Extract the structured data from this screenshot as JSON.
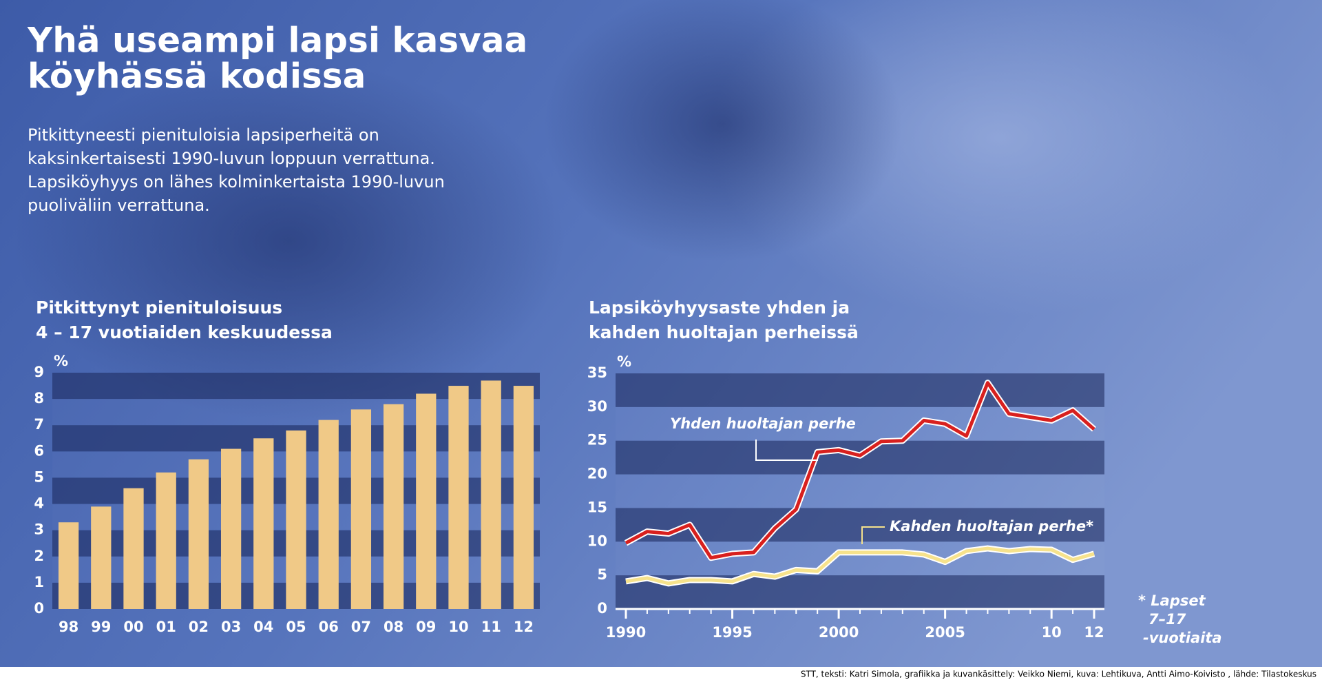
{
  "header": {
    "title": [
      "Yhä useampi lapsi kasvaa",
      "köyhässä kodissa"
    ],
    "subtitle": [
      "Pitkittyneesti pienituloisia lapsiperheitä on",
      "kaksinkertaisesti 1990-luvun loppuun verrattuna.",
      "Lapsiköyhyys on  lähes kolminkertaista 1990-luvun",
      "puoliväliin verrattuna."
    ]
  },
  "chart_data": [
    {
      "type": "bar",
      "title": [
        "Pitkittynyt pienituloisuus",
        "4 – 17 vuotiaiden keskuudessa"
      ],
      "y_label": "%",
      "categories": [
        "98",
        "99",
        "00",
        "01",
        "02",
        "03",
        "04",
        "05",
        "06",
        "07",
        "08",
        "09",
        "10",
        "11",
        "12"
      ],
      "values": [
        3.3,
        3.9,
        4.6,
        5.2,
        5.7,
        6.1,
        6.5,
        6.8,
        7.2,
        7.6,
        7.8,
        8.2,
        8.5,
        8.7,
        8.5
      ],
      "color": "#f0c987",
      "ylim": [
        0,
        9
      ],
      "yticks": [
        0,
        1,
        2,
        3,
        4,
        5,
        6,
        7,
        8,
        9
      ]
    },
    {
      "type": "line",
      "title": [
        "Lapsiköyhyysaste yhden ja",
        "kahden huoltajan perheissä"
      ],
      "y_label": "%",
      "x": [
        1990,
        1991,
        1992,
        1993,
        1994,
        1995,
        1996,
        1997,
        1998,
        1999,
        2000,
        2001,
        2002,
        2003,
        2004,
        2005,
        2006,
        2007,
        2008,
        2009,
        2010,
        2011,
        2012
      ],
      "series": [
        {
          "name": "Yhden huoltajan perhe",
          "color": "#d8201e",
          "values": [
            9.8,
            11.5,
            11.2,
            12.5,
            7.6,
            8.2,
            8.4,
            12,
            14.8,
            23.3,
            23.6,
            22.8,
            24.9,
            25,
            28,
            27.5,
            25.7,
            33.6,
            29,
            28.5,
            28,
            29.5,
            26.7
          ]
        },
        {
          "name": "Kahden huoltajan perhe*",
          "color": "#f6e28c",
          "values": [
            4.1,
            4.6,
            3.8,
            4.3,
            4.3,
            4.1,
            5.2,
            4.8,
            5.8,
            5.6,
            8.4,
            8.4,
            8.4,
            8.4,
            8.1,
            7.0,
            8.6,
            9.0,
            8.6,
            8.9,
            8.8,
            7.3,
            8.2
          ]
        }
      ],
      "xlim": [
        1990,
        2012
      ],
      "xticks": [
        1990,
        1995,
        2000,
        2005,
        {
          "value": 2010,
          "label": "10"
        },
        {
          "value": 2012,
          "label": "12"
        }
      ],
      "ylim": [
        0,
        35
      ],
      "yticks": [
        0,
        5,
        10,
        15,
        20,
        25,
        30,
        35
      ]
    }
  ],
  "footnote": [
    "* Lapset",
    "7–17",
    "-vuotiaita"
  ],
  "credits": "STT, teksti: Katri Simola, grafiikka ja kuvankäsittely: Veikko Niemi, kuva: Lehtikuva, Antti Aimo-Koivisto , lähde: Tilastokeskus"
}
